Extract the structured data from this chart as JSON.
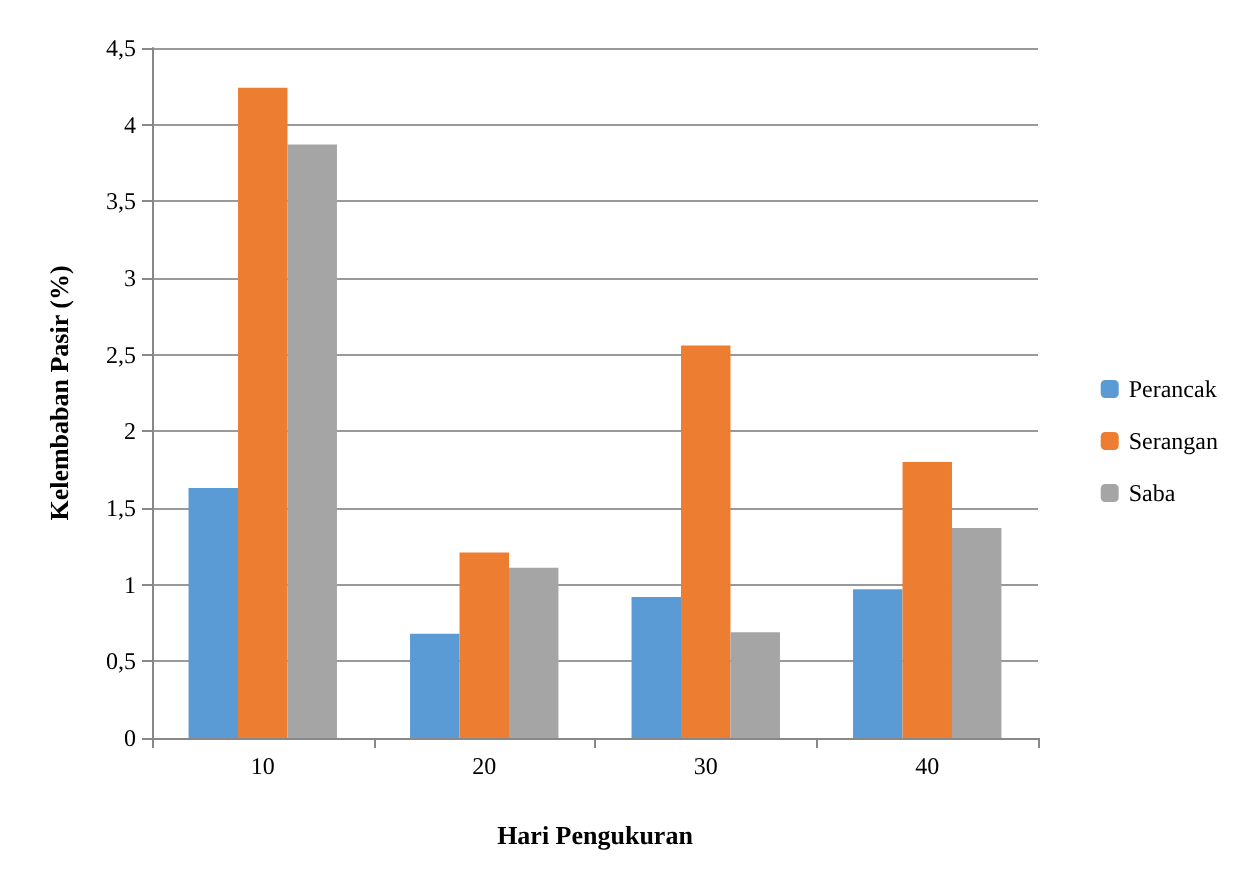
{
  "chart_data": {
    "type": "bar",
    "xlabel": "Hari Pengukuran",
    "ylabel": "Kelembaban Pasir (%)",
    "categories": [
      "10",
      "20",
      "30",
      "40"
    ],
    "series": [
      {
        "name": "Perancak",
        "color": "#5b9bd5",
        "values": [
          1.63,
          0.68,
          0.92,
          0.97
        ]
      },
      {
        "name": "Serangan",
        "color": "#ed7d31",
        "values": [
          4.24,
          1.21,
          2.56,
          1.8
        ]
      },
      {
        "name": "Saba",
        "color": "#a5a5a5",
        "values": [
          3.87,
          1.11,
          0.69,
          1.37
        ]
      }
    ],
    "ylim": [
      0,
      4.5
    ],
    "yticks": [
      {
        "value": 0,
        "label": "0"
      },
      {
        "value": 0.5,
        "label": "0,5"
      },
      {
        "value": 1,
        "label": "1"
      },
      {
        "value": 1.5,
        "label": "1,5"
      },
      {
        "value": 2,
        "label": "2"
      },
      {
        "value": 2.5,
        "label": "2,5"
      },
      {
        "value": 3,
        "label": "3"
      },
      {
        "value": 3.5,
        "label": "3,5"
      },
      {
        "value": 4,
        "label": "4"
      },
      {
        "value": 4.5,
        "label": "4,5"
      }
    ],
    "grid": "y",
    "legend": "right"
  }
}
